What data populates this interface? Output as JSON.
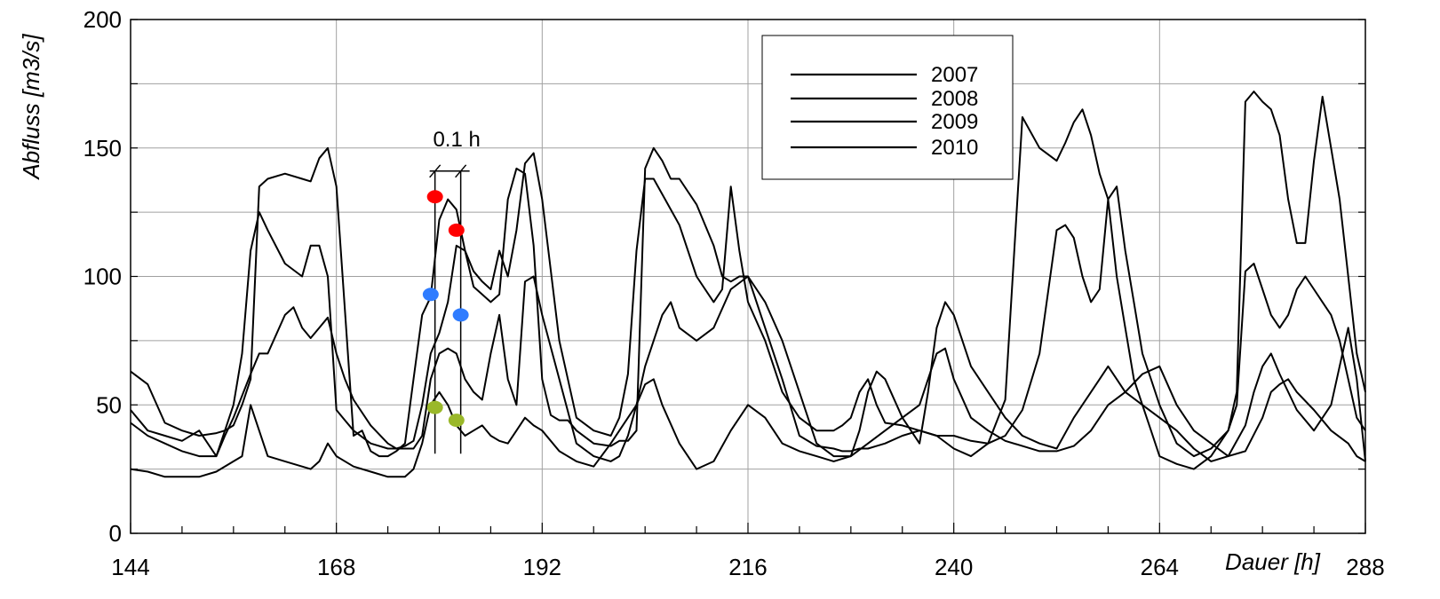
{
  "chart_data": {
    "type": "line",
    "title": "",
    "xlabel": "Dauer [h]",
    "ylabel": "Abfluss [m3/s]",
    "xlim": [
      144,
      288
    ],
    "ylim": [
      0,
      200
    ],
    "xticks": [
      "144",
      "168",
      "192",
      "216",
      "240",
      "264",
      "288"
    ],
    "yticks": [
      "0",
      "50",
      "100",
      "150",
      "200"
    ],
    "grid": true,
    "legend_position": "top-right",
    "annotation": {
      "label": "0.1 h",
      "x": [
        179.5,
        182.5
      ],
      "y": [
        31,
        141
      ]
    },
    "series": [
      {
        "name": "2007",
        "color": "#000000",
        "x": [
          144,
          146,
          148,
          150,
          152,
          154,
          155,
          156,
          157,
          158,
          159,
          160,
          162,
          164,
          165,
          166,
          167,
          168,
          170,
          171,
          172,
          173,
          174,
          175,
          176,
          177,
          178,
          179,
          180,
          181,
          182,
          183,
          184,
          185,
          186,
          187,
          188,
          189,
          190,
          191,
          192,
          193,
          194,
          195,
          196,
          198,
          200,
          201,
          202,
          203,
          204,
          205,
          206,
          207,
          208,
          210,
          212,
          213,
          214,
          215,
          216,
          218,
          220,
          222,
          224,
          226,
          227,
          228,
          229,
          230,
          231,
          232,
          234,
          236,
          238,
          240,
          242,
          244,
          246,
          248,
          250,
          252,
          253,
          254,
          255,
          256,
          257,
          258,
          259,
          260,
          261,
          262,
          263,
          264,
          266,
          268,
          270,
          272,
          273,
          274,
          275,
          276,
          277,
          278,
          279,
          280,
          281,
          282,
          283,
          284,
          285,
          286,
          287,
          288
        ],
        "y": [
          63,
          58,
          43,
          40,
          38,
          39,
          40,
          42,
          50,
          60,
          135,
          138,
          140,
          138,
          137,
          146,
          150,
          135,
          38,
          40,
          32,
          30,
          30,
          32,
          35,
          60,
          85,
          92,
          122,
          130,
          126,
          110,
          96,
          93,
          90,
          93,
          130,
          142,
          140,
          112,
          60,
          46,
          44,
          44,
          40,
          35,
          34,
          36,
          36,
          40,
          142,
          150,
          145,
          138,
          138,
          128,
          112,
          100,
          98,
          100,
          100,
          80,
          60,
          38,
          34,
          33,
          32,
          32,
          33,
          33,
          34,
          35,
          38,
          40,
          38,
          33,
          30,
          35,
          52,
          162,
          150,
          145,
          152,
          160,
          165,
          155,
          140,
          130,
          100,
          80,
          60,
          50,
          40,
          30,
          27,
          25,
          30,
          40,
          55,
          168,
          172,
          168,
          165,
          155,
          130,
          113,
          113,
          145,
          170,
          150,
          130,
          100,
          70,
          55
        ]
      },
      {
        "name": "2008",
        "color": "#000000",
        "x": [
          144,
          146,
          148,
          150,
          152,
          154,
          155,
          156,
          157,
          158,
          159,
          160,
          162,
          164,
          165,
          166,
          167,
          168,
          169,
          170,
          172,
          174,
          175,
          176,
          177,
          178,
          179,
          180,
          181,
          182,
          183,
          184,
          185,
          186,
          187,
          188,
          189,
          190,
          191,
          192,
          194,
          196,
          198,
          200,
          201,
          202,
          203,
          204,
          205,
          206,
          208,
          210,
          212,
          213,
          214,
          215,
          216,
          218,
          220,
          222,
          224,
          226,
          227,
          228,
          229,
          230,
          231,
          232,
          234,
          236,
          238,
          240,
          242,
          244,
          246,
          248,
          250,
          252,
          253,
          254,
          255,
          256,
          257,
          258,
          259,
          260,
          261,
          262,
          263,
          264,
          266,
          268,
          270,
          272,
          273,
          274,
          275,
          276,
          277,
          278,
          279,
          280,
          281,
          282,
          283,
          284,
          285,
          286,
          287,
          288
        ],
        "y": [
          48,
          40,
          38,
          36,
          40,
          30,
          40,
          50,
          70,
          110,
          125,
          118,
          105,
          100,
          112,
          112,
          100,
          48,
          44,
          40,
          35,
          33,
          33,
          34,
          36,
          50,
          70,
          78,
          90,
          112,
          110,
          102,
          98,
          95,
          110,
          100,
          118,
          144,
          148,
          130,
          75,
          45,
          40,
          38,
          45,
          62,
          110,
          138,
          138,
          132,
          120,
          100,
          90,
          95,
          135,
          110,
          90,
          75,
          55,
          45,
          40,
          40,
          42,
          45,
          55,
          60,
          50,
          43,
          42,
          40,
          38,
          38,
          36,
          35,
          38,
          48,
          70,
          118,
          120,
          115,
          100,
          90,
          95,
          130,
          135,
          110,
          90,
          70,
          60,
          50,
          35,
          30,
          33,
          40,
          50,
          102,
          105,
          95,
          85,
          80,
          85,
          95,
          100,
          95,
          90,
          85,
          75,
          60,
          45,
          40
        ]
      },
      {
        "name": "2009",
        "color": "#000000",
        "x": [
          144,
          146,
          148,
          150,
          152,
          154,
          155,
          156,
          158,
          159,
          160,
          162,
          163,
          164,
          165,
          166,
          167,
          168,
          169,
          170,
          172,
          174,
          175,
          176,
          177,
          178,
          179,
          180,
          181,
          182,
          183,
          184,
          185,
          186,
          187,
          188,
          189,
          190,
          191,
          192,
          194,
          196,
          198,
          200,
          201,
          202,
          203,
          204,
          205,
          206,
          207,
          208,
          210,
          212,
          214,
          216,
          218,
          220,
          222,
          224,
          226,
          228,
          229,
          230,
          231,
          232,
          234,
          236,
          237,
          238,
          239,
          240,
          242,
          244,
          246,
          248,
          250,
          252,
          254,
          256,
          257,
          258,
          259,
          260,
          262,
          264,
          266,
          268,
          270,
          272,
          274,
          275,
          276,
          277,
          278,
          280,
          282,
          284,
          285,
          286,
          287,
          288
        ],
        "y": [
          43,
          38,
          35,
          32,
          30,
          30,
          38,
          45,
          62,
          70,
          70,
          85,
          88,
          80,
          76,
          80,
          84,
          70,
          60,
          52,
          42,
          35,
          33,
          33,
          33,
          38,
          60,
          70,
          72,
          70,
          60,
          55,
          52,
          70,
          85,
          60,
          50,
          98,
          100,
          85,
          60,
          35,
          30,
          28,
          30,
          38,
          50,
          65,
          75,
          85,
          90,
          80,
          75,
          80,
          95,
          100,
          90,
          75,
          55,
          35,
          30,
          30,
          40,
          55,
          63,
          60,
          45,
          35,
          55,
          80,
          90,
          85,
          65,
          55,
          45,
          38,
          35,
          33,
          45,
          55,
          60,
          65,
          60,
          55,
          50,
          45,
          40,
          33,
          28,
          30,
          42,
          55,
          65,
          70,
          62,
          48,
          40,
          50,
          65,
          80,
          60,
          28
        ]
      },
      {
        "name": "2010",
        "color": "#000000",
        "x": [
          144,
          146,
          148,
          150,
          152,
          154,
          156,
          157,
          158,
          160,
          162,
          164,
          165,
          166,
          167,
          168,
          170,
          172,
          174,
          175,
          176,
          177,
          178,
          179,
          180,
          181,
          182,
          183,
          184,
          185,
          186,
          187,
          188,
          189,
          190,
          191,
          192,
          194,
          196,
          198,
          200,
          202,
          203,
          204,
          205,
          206,
          208,
          210,
          212,
          214,
          216,
          218,
          220,
          222,
          224,
          226,
          228,
          230,
          232,
          234,
          236,
          237,
          238,
          239,
          240,
          242,
          244,
          246,
          248,
          250,
          252,
          254,
          256,
          258,
          260,
          262,
          264,
          266,
          268,
          270,
          272,
          274,
          276,
          277,
          278,
          279,
          280,
          282,
          284,
          286,
          287,
          288
        ],
        "y": [
          25,
          24,
          22,
          22,
          22,
          24,
          28,
          30,
          50,
          30,
          28,
          26,
          25,
          28,
          35,
          30,
          26,
          24,
          22,
          22,
          22,
          25,
          35,
          50,
          55,
          50,
          42,
          38,
          40,
          42,
          38,
          36,
          35,
          40,
          45,
          42,
          40,
          32,
          28,
          26,
          35,
          45,
          50,
          58,
          60,
          50,
          35,
          25,
          28,
          40,
          50,
          45,
          35,
          32,
          30,
          28,
          30,
          35,
          40,
          45,
          50,
          60,
          70,
          72,
          60,
          45,
          40,
          36,
          34,
          32,
          32,
          34,
          40,
          50,
          55,
          62,
          65,
          50,
          40,
          35,
          30,
          32,
          45,
          55,
          58,
          60,
          55,
          48,
          40,
          35,
          30,
          28
        ]
      }
    ],
    "markers": [
      {
        "x": 179.5,
        "y": 131,
        "color": "#ff0000"
      },
      {
        "x": 182.0,
        "y": 118,
        "color": "#ff0000"
      },
      {
        "x": 179.0,
        "y": 93,
        "color": "#2f7cff"
      },
      {
        "x": 182.5,
        "y": 85,
        "color": "#2f7cff"
      },
      {
        "x": 179.5,
        "y": 49,
        "color": "#9ab82a"
      },
      {
        "x": 182.0,
        "y": 44,
        "color": "#9ab82a"
      }
    ]
  }
}
